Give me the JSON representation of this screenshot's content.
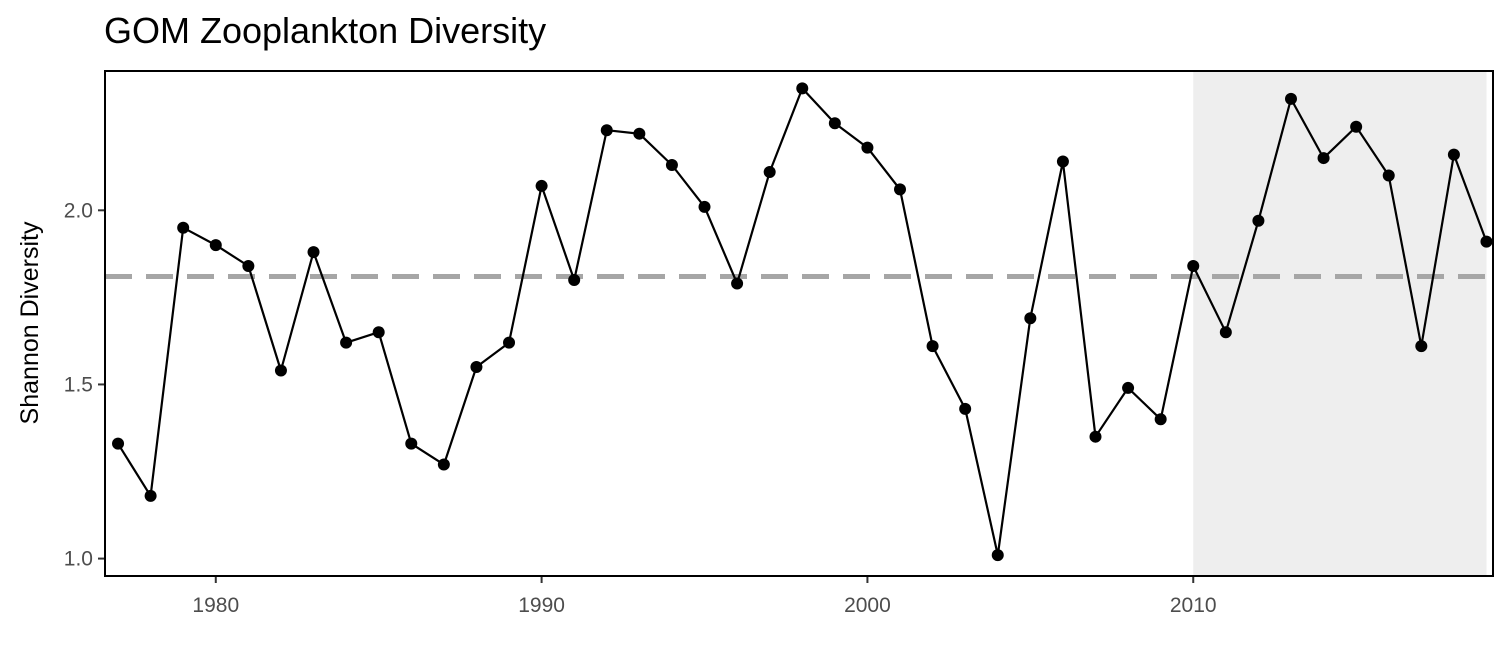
{
  "chart_data": {
    "type": "line",
    "title": "GOM Zooplankton Diversity",
    "xlabel": "",
    "ylabel": "Shannon Diversity",
    "xlim": [
      1976.6,
      2019.2
    ],
    "ylim": [
      0.95,
      2.4
    ],
    "x_ticks": [
      1980,
      1990,
      2000,
      2010
    ],
    "y_ticks": [
      1.0,
      1.5,
      2.0
    ],
    "y_tick_labels": [
      "1.0",
      "1.5",
      "2.0"
    ],
    "x": [
      1977,
      1978,
      1979,
      1980,
      1981,
      1982,
      1983,
      1984,
      1985,
      1986,
      1987,
      1988,
      1989,
      1990,
      1991,
      1992,
      1993,
      1994,
      1995,
      1996,
      1997,
      1998,
      1999,
      2000,
      2001,
      2002,
      2003,
      2004,
      2005,
      2006,
      2007,
      2008,
      2009,
      2010,
      2011,
      2012,
      2013,
      2014,
      2015,
      2016,
      2017,
      2018,
      2019
    ],
    "values": [
      1.33,
      1.18,
      1.95,
      1.9,
      1.84,
      1.54,
      1.88,
      1.62,
      1.65,
      1.33,
      1.27,
      1.55,
      1.62,
      2.07,
      1.8,
      2.23,
      2.22,
      2.13,
      2.01,
      1.79,
      2.11,
      2.35,
      2.25,
      2.18,
      2.06,
      1.61,
      1.43,
      1.01,
      1.69,
      2.14,
      1.35,
      1.49,
      1.4,
      1.84,
      1.65,
      1.97,
      2.32,
      2.15,
      2.24,
      2.1,
      1.61,
      2.16,
      1.91
    ],
    "reference_line": {
      "value": 1.81,
      "style": "dashed",
      "color": "#a6a6a6"
    },
    "shaded_region": {
      "x_start": 2010,
      "x_end": 2019,
      "color": "#eeeeee"
    },
    "line_color": "#000000",
    "grid": false,
    "legend": "none"
  }
}
